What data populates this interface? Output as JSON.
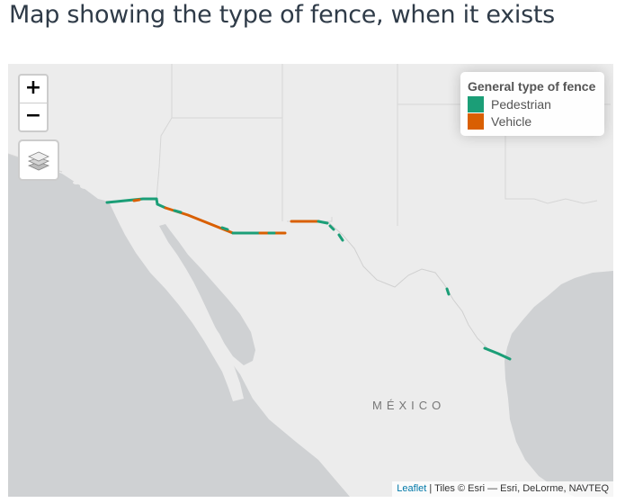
{
  "page": {
    "title": "Map showing the type of fence, when it exists"
  },
  "zoom": {
    "in_label": "+",
    "out_label": "−"
  },
  "legend": {
    "title": "General type of fence",
    "items": [
      {
        "label": "Pedestrian",
        "color": "#1b9e77"
      },
      {
        "label": "Vehicle",
        "color": "#d95f02"
      }
    ]
  },
  "map": {
    "country_label": "MÉXICO",
    "land_color": "#ececec",
    "water_color": "#cfd1d3",
    "border_color": "#d6d6d6"
  },
  "attribution": {
    "link": "Leaflet",
    "text": " | Tiles © Esri — Esri, DeLorme, NAVTEQ"
  },
  "icons": {
    "layers": "layers-icon"
  }
}
